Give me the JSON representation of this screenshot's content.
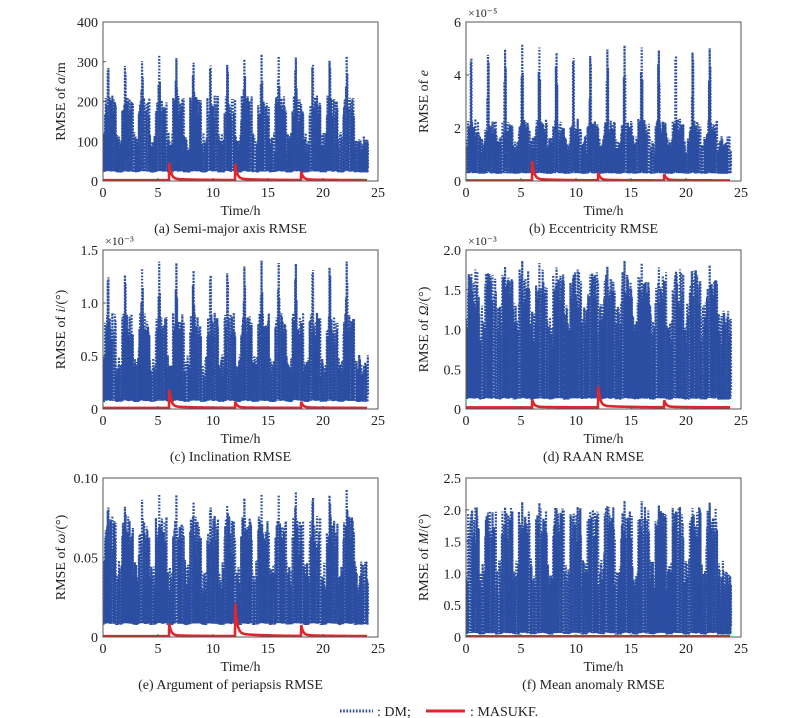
{
  "legend": [
    {
      "label": ": DM;",
      "style": "dotted",
      "color": "#2b4ea2"
    },
    {
      "label": ": MASUKF.",
      "style": "solid",
      "color": "#e0262b"
    }
  ],
  "chart_data": [
    {
      "type": "line",
      "id": "a",
      "title": "(a) Semi-major axis RMSE",
      "xlabel": "Time/h",
      "ylabel_prefix": "RMSE of ",
      "ylabel_var": "a",
      "ylabel_suffix": "/m",
      "exponent": "",
      "xlim": [
        0,
        25
      ],
      "ylim": [
        0,
        400
      ],
      "xticks": [
        0,
        5,
        10,
        15,
        20,
        25
      ],
      "yticks": [
        0,
        100,
        200,
        300,
        400
      ],
      "ytick_labels": [
        "0",
        "100",
        "200",
        "300",
        "400"
      ],
      "series": [
        {
          "name": "DM",
          "pattern": "periodic-oscillation",
          "period_h": 1.55,
          "t_end": 24.1,
          "peak_values": [
            325,
            325,
            325,
            328,
            325,
            326,
            332,
            328,
            330,
            330,
            330,
            340,
            336,
            340,
            338
          ],
          "secondary_peak": 220,
          "mid_level": 115,
          "floor": 20
        },
        {
          "name": "MASUKF",
          "baseline": 2,
          "t_end": 24,
          "spikes": [
            {
              "t": 6,
              "value": 45
            },
            {
              "t": 12,
              "value": 42
            },
            {
              "t": 18,
              "value": 22
            }
          ]
        }
      ]
    },
    {
      "type": "line",
      "id": "b",
      "title": "(b) Eccentricity RMSE",
      "xlabel": "Time/h",
      "ylabel_prefix": "RMSE of ",
      "ylabel_var": "e",
      "ylabel_suffix": "",
      "exponent": "×10⁻⁵",
      "xlim": [
        0,
        25
      ],
      "ylim": [
        0,
        6
      ],
      "xticks": [
        0,
        5,
        10,
        15,
        20,
        25
      ],
      "yticks": [
        0,
        2,
        4,
        6
      ],
      "ytick_labels": [
        "0",
        "2",
        "4",
        "6"
      ],
      "series": [
        {
          "name": "DM",
          "pattern": "periodic-oscillation",
          "period_h": 1.55,
          "t_end": 24.1,
          "peak_values": [
            5.3,
            5.35,
            5.35,
            5.35,
            5.3,
            5.3,
            5.3,
            5.3,
            5.35,
            5.3,
            5.3,
            5.4,
            5.4,
            5.45,
            5.4
          ],
          "secondary_peak": 2.4,
          "mid_level": 1.6,
          "floor": 0.25
        },
        {
          "name": "MASUKF",
          "baseline": 0.02,
          "t_end": 24,
          "spikes": [
            {
              "t": 6,
              "value": 0.75
            },
            {
              "t": 12,
              "value": 0.3
            },
            {
              "t": 18,
              "value": 0.25
            }
          ]
        }
      ]
    },
    {
      "type": "line",
      "id": "c",
      "title": "(c) Inclination RMSE",
      "xlabel": "Time/h",
      "ylabel_prefix": "RMSE of ",
      "ylabel_var": "i",
      "ylabel_suffix": "/(°)",
      "exponent": "×10⁻³",
      "xlim": [
        0,
        25
      ],
      "ylim": [
        0,
        1.5
      ],
      "xticks": [
        0,
        5,
        10,
        15,
        20,
        25
      ],
      "yticks": [
        0,
        0.5,
        1.0,
        1.5
      ],
      "ytick_labels": [
        "0",
        "0.5",
        "1.0",
        "1.5"
      ],
      "series": [
        {
          "name": "DM",
          "pattern": "periodic-oscillation",
          "period_h": 1.55,
          "t_end": 24.1,
          "peak_values": [
            1.42,
            1.42,
            1.43,
            1.44,
            1.45,
            1.43,
            1.44,
            1.44,
            1.45,
            1.45,
            1.45,
            1.5,
            1.5,
            1.5,
            1.5
          ],
          "secondary_peak": 0.93,
          "mid_level": 0.48,
          "floor": 0.06
        },
        {
          "name": "MASUKF",
          "baseline": 0.01,
          "t_end": 24,
          "spikes": [
            {
              "t": 6,
              "value": 0.18
            },
            {
              "t": 12,
              "value": 0.06
            },
            {
              "t": 18,
              "value": 0.06
            }
          ]
        }
      ]
    },
    {
      "type": "line",
      "id": "d",
      "title": "(d) RAAN RMSE",
      "xlabel": "Time/h",
      "ylabel_prefix": "RMSE of ",
      "ylabel_var": "Ω",
      "ylabel_suffix": "/(°)",
      "exponent": "×10⁻³",
      "xlim": [
        0,
        25
      ],
      "ylim": [
        0,
        2.0
      ],
      "xticks": [
        0,
        5,
        10,
        15,
        20,
        25
      ],
      "yticks": [
        0,
        0.5,
        1.0,
        1.5,
        2.0
      ],
      "ytick_labels": [
        "0",
        "0.5",
        "1.0",
        "1.5",
        "2.0"
      ],
      "series": [
        {
          "name": "DM",
          "pattern": "periodic-oscillation",
          "period_h": 1.55,
          "t_end": 24.1,
          "peak_values": [
            1.95,
            1.92,
            1.93,
            1.93,
            1.93,
            1.95,
            1.93,
            1.9,
            1.93,
            1.93,
            1.93,
            1.95,
            1.98,
            1.95,
            1.95
          ],
          "secondary_peak": 1.8,
          "mid_level": 1.25,
          "floor": 0.1
        },
        {
          "name": "MASUKF",
          "baseline": 0.02,
          "t_end": 24,
          "spikes": [
            {
              "t": 6,
              "value": 0.1
            },
            {
              "t": 12,
              "value": 0.27
            },
            {
              "t": 18,
              "value": 0.09
            }
          ]
        }
      ]
    },
    {
      "type": "line",
      "id": "e",
      "title": "(e) Argument of periapsis RMSE",
      "xlabel": "Time/h",
      "ylabel_prefix": "RMSE of ",
      "ylabel_var": "ω",
      "ylabel_suffix": "/(°)",
      "exponent": "",
      "xlim": [
        0,
        25
      ],
      "ylim": [
        0,
        0.1
      ],
      "xticks": [
        0,
        5,
        10,
        15,
        20,
        25
      ],
      "yticks": [
        0,
        0.05,
        0.1
      ],
      "ytick_labels": [
        "0",
        "0.05",
        "0.10"
      ],
      "series": [
        {
          "name": "DM",
          "pattern": "periodic-oscillation",
          "period_h": 1.55,
          "t_end": 24.1,
          "peak_values": [
            0.093,
            0.092,
            0.093,
            0.093,
            0.094,
            0.093,
            0.093,
            0.093,
            0.094,
            0.093,
            0.094,
            0.1,
            0.1,
            0.1,
            0.1
          ],
          "secondary_peak": 0.078,
          "mid_level": 0.045,
          "floor": 0.007
        },
        {
          "name": "MASUKF",
          "baseline": 0.0005,
          "t_end": 24,
          "spikes": [
            {
              "t": 6,
              "value": 0.008
            },
            {
              "t": 12,
              "value": 0.021
            },
            {
              "t": 18,
              "value": 0.007
            }
          ]
        }
      ]
    },
    {
      "type": "line",
      "id": "f",
      "title": "(f) Mean anomaly RMSE",
      "xlabel": "Time/h",
      "ylabel_prefix": "RMSE of ",
      "ylabel_var": "M",
      "ylabel_suffix": "/(°)",
      "exponent": "",
      "xlim": [
        0,
        25
      ],
      "ylim": [
        0,
        2.5
      ],
      "xticks": [
        0,
        5,
        10,
        15,
        20,
        25
      ],
      "yticks": [
        0,
        0.5,
        1.0,
        1.5,
        2.0,
        2.5
      ],
      "ytick_labels": [
        "0",
        "0.5",
        "1.0",
        "1.5",
        "2.0",
        "2.5"
      ],
      "series": [
        {
          "name": "DM",
          "pattern": "periodic-oscillation",
          "period_h": 1.55,
          "t_end": 24.1,
          "peak_values": [
            2.22,
            2.2,
            2.2,
            2.2,
            2.22,
            2.22,
            2.22,
            2.22,
            2.22,
            2.22,
            2.25,
            2.27,
            2.27,
            2.28,
            2.28
          ],
          "secondary_peak": 2.1,
          "mid_level": 1.15,
          "floor": 0.02
        },
        {
          "name": "MASUKF",
          "baseline": 0.01,
          "t_end": 24,
          "spikes": []
        }
      ]
    }
  ]
}
